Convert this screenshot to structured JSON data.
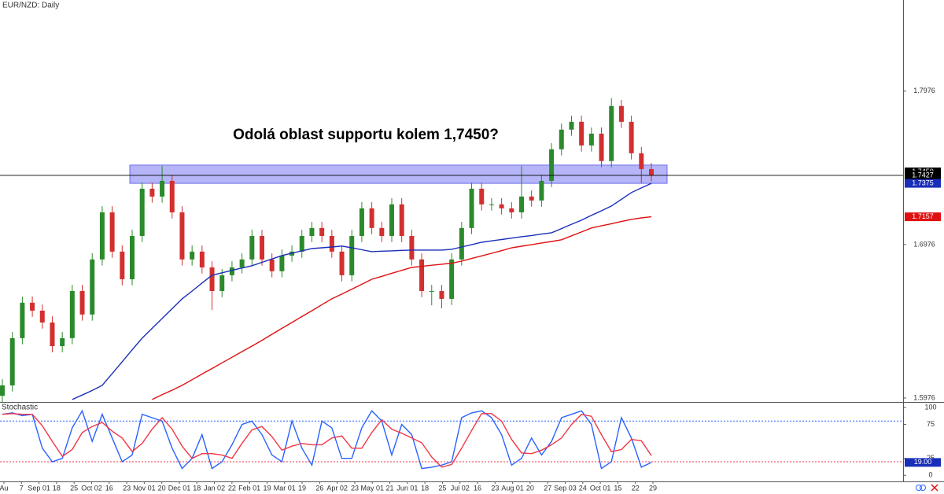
{
  "chart_data": [
    {
      "type": "candlestick",
      "title": "EUR/NZD: Daily",
      "annotation": "Odolá oblast supportu kolem 1,7450?",
      "up_color": "#2b8a2b",
      "down_color": "#d32f2f",
      "open": [
        1.599,
        1.6058,
        1.6366,
        1.6597,
        1.6545,
        1.6468,
        1.6314,
        1.6366,
        1.6673,
        1.652,
        1.6879,
        1.7186,
        1.693,
        1.675,
        1.7032,
        1.734,
        1.7289,
        1.7391,
        1.7186,
        1.6879,
        1.693,
        1.6827,
        1.6673,
        1.6776,
        1.6827,
        1.6879,
        1.7032,
        1.6879,
        1.6802,
        1.6904,
        1.693,
        1.7032,
        1.7084,
        1.7032,
        1.693,
        1.6776,
        1.7032,
        1.7212,
        1.7084,
        1.7032,
        1.7238,
        1.7032,
        1.6879,
        1.6673,
        1.6673,
        1.6622,
        1.6879,
        1.7084,
        1.734,
        1.7238,
        1.7238,
        1.7212,
        1.7186,
        1.7289,
        1.7263,
        1.7391,
        1.7597,
        1.7725,
        1.7776,
        1.7622,
        1.7699,
        1.752,
        1.7879,
        1.7776,
        1.7571,
        1.7468
      ],
      "high": [
        1.6098,
        1.6406,
        1.6637,
        1.6637,
        1.6585,
        1.6508,
        1.6406,
        1.6713,
        1.6713,
        1.6919,
        1.7226,
        1.7226,
        1.697,
        1.7072,
        1.738,
        1.738,
        1.749,
        1.7431,
        1.7226,
        1.697,
        1.697,
        1.6867,
        1.6816,
        1.6867,
        1.6919,
        1.7072,
        1.7072,
        1.6919,
        1.6944,
        1.697,
        1.7072,
        1.7124,
        1.7124,
        1.7072,
        1.697,
        1.7072,
        1.7252,
        1.7252,
        1.7124,
        1.7278,
        1.7278,
        1.7072,
        1.6919,
        1.6713,
        1.6713,
        1.6919,
        1.7124,
        1.738,
        1.738,
        1.7278,
        1.7278,
        1.7252,
        1.749,
        1.7329,
        1.7431,
        1.7637,
        1.7765,
        1.7816,
        1.7816,
        1.7739,
        1.7739,
        1.793,
        1.7919,
        1.7816,
        1.7611,
        1.7508
      ],
      "low": [
        1.595,
        1.6018,
        1.6326,
        1.6505,
        1.6428,
        1.6274,
        1.6274,
        1.6326,
        1.648,
        1.648,
        1.6839,
        1.689,
        1.671,
        1.671,
        1.6992,
        1.7249,
        1.7249,
        1.7146,
        1.6839,
        1.6839,
        1.6787,
        1.655,
        1.6633,
        1.6736,
        1.6787,
        1.6839,
        1.6839,
        1.6762,
        1.6762,
        1.6864,
        1.689,
        1.6992,
        1.6992,
        1.689,
        1.6736,
        1.6736,
        1.6992,
        1.7044,
        1.6992,
        1.6992,
        1.6992,
        1.6839,
        1.6633,
        1.658,
        1.656,
        1.6582,
        1.6839,
        1.7044,
        1.7198,
        1.7198,
        1.7172,
        1.7146,
        1.7146,
        1.7223,
        1.7223,
        1.7351,
        1.7557,
        1.7685,
        1.7582,
        1.7582,
        1.748,
        1.748,
        1.7736,
        1.7531,
        1.7375,
        1.7387
      ],
      "close": [
        1.6058,
        1.6366,
        1.6597,
        1.6545,
        1.6468,
        1.6314,
        1.6366,
        1.6673,
        1.652,
        1.6879,
        1.7186,
        1.693,
        1.675,
        1.7032,
        1.734,
        1.7289,
        1.7391,
        1.7186,
        1.6879,
        1.693,
        1.6827,
        1.6673,
        1.6776,
        1.6827,
        1.6879,
        1.7032,
        1.6879,
        1.6802,
        1.6904,
        1.693,
        1.7032,
        1.7084,
        1.7032,
        1.693,
        1.6776,
        1.7032,
        1.7212,
        1.7084,
        1.7032,
        1.7238,
        1.7032,
        1.6879,
        1.6673,
        1.6673,
        1.6622,
        1.6879,
        1.7084,
        1.734,
        1.7238,
        1.7238,
        1.7212,
        1.7186,
        1.7289,
        1.7263,
        1.7391,
        1.7597,
        1.7725,
        1.7776,
        1.7622,
        1.7699,
        1.752,
        1.7879,
        1.7776,
        1.7571,
        1.7468,
        1.7427
      ],
      "overlays": [
        {
          "color": "#1a2fb8",
          "values": [
            null,
            null,
            null,
            null,
            null,
            null,
            null,
            1.5966,
            1.5995,
            1.6025,
            1.6058,
            1.6135,
            1.6212,
            1.629,
            1.6366,
            1.643,
            1.6494,
            1.6558,
            1.6622,
            1.6673,
            1.6725,
            1.6776,
            1.6792,
            1.6808,
            1.6823,
            1.6838,
            1.686,
            1.6882,
            1.6904,
            1.692,
            1.6935,
            1.695,
            1.6955,
            1.696,
            1.6966,
            1.6955,
            1.6942,
            1.693,
            1.6933,
            1.6935,
            1.6938,
            1.694,
            1.694,
            1.694,
            1.694,
            1.6945,
            1.696,
            1.6975,
            1.6991,
            1.7,
            1.7009,
            1.7018,
            1.7027,
            1.7035,
            1.7044,
            1.7053,
            1.708,
            1.7108,
            1.7135,
            1.7166,
            1.7196,
            1.7227,
            1.7271,
            1.7315,
            1.7345,
            1.7375
          ]
        },
        {
          "color": "#e01010",
          "values": [
            null,
            null,
            null,
            null,
            null,
            null,
            null,
            null,
            null,
            null,
            null,
            null,
            null,
            null,
            null,
            1.5966,
            1.5997,
            1.6027,
            1.6058,
            1.6095,
            1.6132,
            1.6168,
            1.6205,
            1.6241,
            1.6278,
            1.6314,
            1.6352,
            1.6391,
            1.643,
            1.6468,
            1.6507,
            1.6545,
            1.6584,
            1.6622,
            1.6653,
            1.6685,
            1.6717,
            1.675,
            1.6769,
            1.6789,
            1.6808,
            1.6827,
            1.6834,
            1.6841,
            1.6848,
            1.6855,
            1.6868,
            1.6885,
            1.6902,
            1.6919,
            1.6936,
            1.6955,
            1.6965,
            1.6975,
            1.6986,
            1.6996,
            1.7007,
            1.7033,
            1.7058,
            1.7084,
            1.7098,
            1.7112,
            1.7126,
            1.714,
            1.715,
            1.7157
          ]
        }
      ],
      "support_zone": [
        1.7375,
        1.7494
      ],
      "zone_color": "#6b6bf0",
      "ylim": [
        1.595,
        1.857
      ],
      "yticks": [
        1.5976,
        1.6976,
        1.7976
      ],
      "price_labels": [
        {
          "value": 1.745,
          "label": "1.7450",
          "color": "#000000"
        },
        {
          "value": 1.7427,
          "label": "1.7427",
          "color": "#000000"
        },
        {
          "value": 1.7375,
          "label": "1.7375",
          "color": "#1a2fb8"
        },
        {
          "value": 1.7157,
          "label": "1.7157",
          "color": "#e01010"
        }
      ],
      "x_labels": [
        "Au",
        "7",
        "Sep 01",
        "18",
        "25",
        "Oct 02",
        "16",
        "23",
        "Nov 01",
        "20",
        "Dec 01",
        "18",
        "Jan 02",
        "22",
        "Feb 01",
        "19",
        "Mar 01",
        "19",
        "26",
        "Apr 02",
        "23",
        "May 01",
        "21",
        "Jun 01",
        "18",
        "25",
        "Jul 02",
        "16",
        "23",
        "Aug 01",
        "20",
        "27",
        "Sep 03",
        "24",
        "Oct 01",
        "15",
        "22",
        "29"
      ]
    },
    {
      "type": "line",
      "title": "Stochastic",
      "series": [
        {
          "color": "#2962ff",
          "values": [
            90,
            92,
            88,
            90,
            40,
            20,
            25,
            70,
            95,
            50,
            90,
            55,
            20,
            30,
            90,
            85,
            80,
            40,
            10,
            25,
            60,
            10,
            20,
            45,
            75,
            80,
            60,
            30,
            20,
            80,
            40,
            15,
            80,
            70,
            25,
            25,
            70,
            95,
            80,
            30,
            75,
            60,
            10,
            12,
            15,
            20,
            85,
            92,
            95,
            85,
            60,
            15,
            25,
            55,
            30,
            50,
            85,
            90,
            95,
            75,
            10,
            20,
            85,
            55,
            12,
            19
          ]
        },
        {
          "color": "#f23645",
          "values": [
            90,
            91,
            90,
            90,
            73,
            50,
            28,
            38,
            63,
            72,
            78,
            65,
            55,
            35,
            47,
            68,
            85,
            68,
            43,
            25,
            32,
            32,
            30,
            25,
            47,
            67,
            72,
            57,
            37,
            43,
            47,
            45,
            45,
            55,
            58,
            40,
            40,
            63,
            82,
            68,
            62,
            55,
            48,
            27,
            12,
            16,
            40,
            66,
            91,
            91,
            80,
            53,
            33,
            32,
            37,
            45,
            55,
            75,
            90,
            87,
            60,
            35,
            38,
            53,
            51,
            29
          ]
        }
      ],
      "levels": [
        {
          "value": 80,
          "color": "#2962ff"
        },
        {
          "value": 20,
          "color": "#f23645"
        }
      ],
      "ylim": [
        -9,
        107
      ],
      "yticks": [
        0,
        25,
        75,
        100
      ],
      "last_label": {
        "value": 19,
        "label": "19.00",
        "color": "#1a2fb8"
      }
    }
  ]
}
